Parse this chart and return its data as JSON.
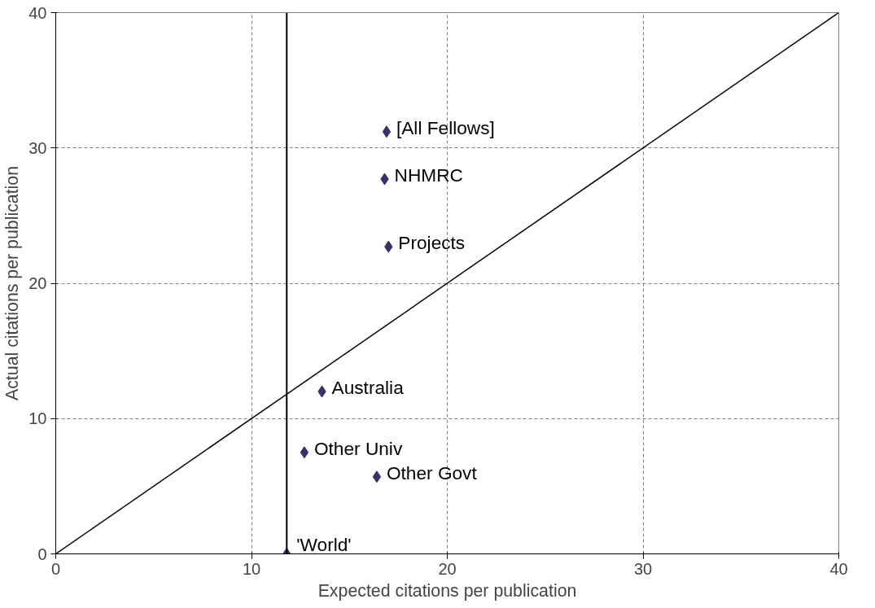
{
  "chart_data": {
    "type": "scatter",
    "xlabel": "Expected citations per publication",
    "ylabel": "Actual citations per publication",
    "xlim": [
      0,
      40
    ],
    "ylim": [
      0,
      40
    ],
    "xticks": [
      0,
      10,
      20,
      30,
      40
    ],
    "yticks": [
      0,
      10,
      20,
      30,
      40
    ],
    "grid": true,
    "series": [
      {
        "marker": "diamond",
        "color": "#333366",
        "x": [
          16.9,
          16.8,
          17.0,
          13.6,
          12.7,
          16.4,
          11.8
        ],
        "values": [
          31.2,
          27.7,
          22.7,
          12.0,
          7.5,
          5.7,
          0
        ]
      },
      {
        "type": "line",
        "color": "#000000",
        "x": [
          0,
          40
        ],
        "values": [
          0,
          40
        ]
      }
    ],
    "ref_lines": [
      {
        "axis": "x",
        "value": 11.8,
        "color": "#000000"
      }
    ],
    "annotations": [
      {
        "text": "[All Fellows]",
        "x": 16.9,
        "y": 31.2
      },
      {
        "text": "NHMRC",
        "x": 16.8,
        "y": 27.7
      },
      {
        "text": "Projects",
        "x": 17.0,
        "y": 22.7
      },
      {
        "text": "Australia",
        "x": 13.6,
        "y": 12.0
      },
      {
        "text": "Other Univ",
        "x": 12.7,
        "y": 7.5
      },
      {
        "text": "Other Govt",
        "x": 16.4,
        "y": 5.7
      },
      {
        "text": "'World'",
        "x": 11.8,
        "y": 0
      }
    ]
  }
}
